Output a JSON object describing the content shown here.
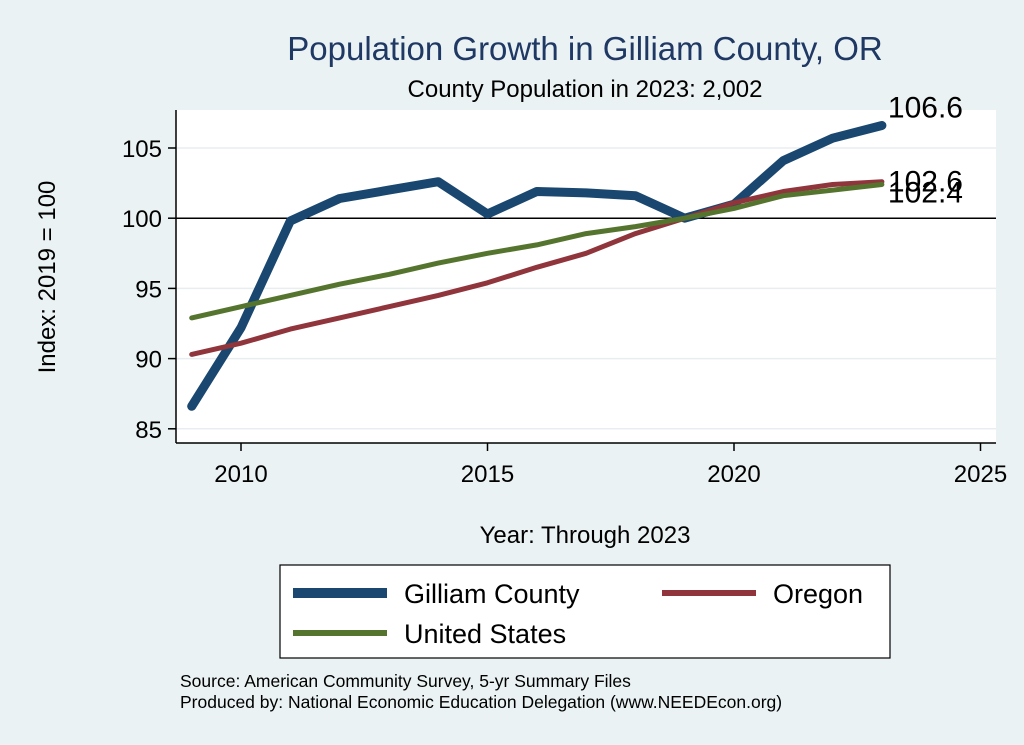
{
  "chart_data": {
    "type": "line",
    "title": "Population Growth in Gilliam County, OR",
    "subtitle": "County Population in 2023: 2,002",
    "xlabel": "Year: Through 2023",
    "ylabel": "Index: 2019 = 100",
    "xlim": [
      2009,
      2025
    ],
    "ylim": [
      84,
      107.5
    ],
    "xticks": [
      2010,
      2015,
      2020,
      2025
    ],
    "yticks": [
      85,
      90,
      95,
      100,
      105
    ],
    "reference_line": 100,
    "x": [
      2009,
      2010,
      2011,
      2012,
      2013,
      2014,
      2015,
      2016,
      2017,
      2018,
      2019,
      2020,
      2021,
      2022,
      2023
    ],
    "series": [
      {
        "name": "Gilliam  County",
        "color": "#1a476f",
        "width": 9,
        "values": [
          86.6,
          92.2,
          99.8,
          101.4,
          102.0,
          102.6,
          100.3,
          101.9,
          101.8,
          101.6,
          100.0,
          101.0,
          104.1,
          105.7,
          106.6
        ],
        "end_label": "106.6"
      },
      {
        "name": "Oregon",
        "color": "#90353b",
        "width": 5,
        "values": [
          90.3,
          91.1,
          92.1,
          92.9,
          93.7,
          94.5,
          95.4,
          96.5,
          97.5,
          98.9,
          100.0,
          101.1,
          101.9,
          102.4,
          102.6
        ],
        "end_label": "102.6"
      },
      {
        "name": "United States",
        "color": "#55752f",
        "width": 5,
        "values": [
          92.9,
          93.7,
          94.5,
          95.3,
          96.0,
          96.8,
          97.5,
          98.1,
          98.9,
          99.4,
          100.0,
          100.7,
          101.6,
          102.0,
          102.4
        ],
        "end_label": "102.4"
      }
    ],
    "legend": [
      "Gilliam  County",
      "Oregon",
      "United States"
    ]
  },
  "source": "Source: American Community Survey, 5-yr Summary Files",
  "producer": "Produced by: National Economic Education Delegation (www.NEEDEcon.org)"
}
